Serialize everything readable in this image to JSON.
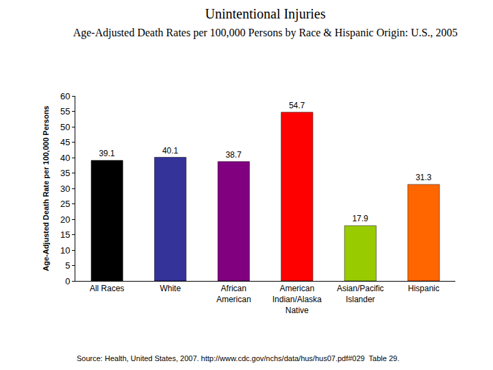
{
  "chart_data": {
    "type": "bar",
    "title": "Unintentional Injuries",
    "subtitle": "Age-Adjusted Death Rates per 100,000 Persons by Race & Hispanic Origin: U.S., 2005",
    "y_label": "Age-Adjusted Death Rate per 100,000 Persons",
    "categories": [
      "All Races",
      "White",
      "African American",
      "American Indian/Alaska Native",
      "Asian/Pacific Islander",
      "Hispanic"
    ],
    "values": [
      39.1,
      40.1,
      38.7,
      54.7,
      17.9,
      31.3
    ],
    "colors": [
      "#000000",
      "#333399",
      "#800080",
      "#ff0000",
      "#99cc00",
      "#ff6600"
    ],
    "ylim": [
      0,
      60
    ],
    "yticks": [
      0,
      5,
      10,
      15,
      20,
      25,
      30,
      35,
      40,
      45,
      50,
      55,
      60
    ],
    "grid": false,
    "data_labels": true,
    "annotations": [
      "Source: Health, United States, 2007. http://www.cdc.gov/nchs/data/hus/hus07.pdf#029  Table 29."
    ]
  }
}
